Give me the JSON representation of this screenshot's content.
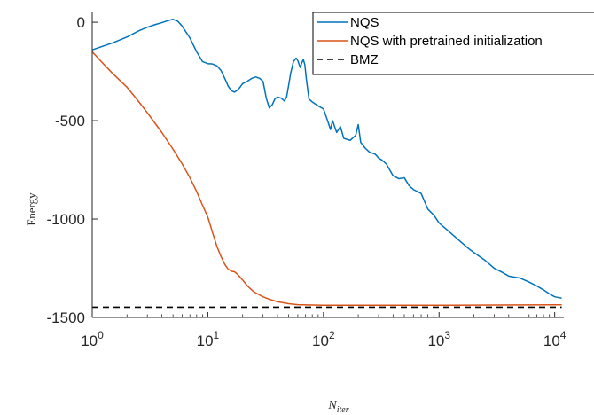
{
  "chart_data": {
    "type": "line",
    "xscale": "log",
    "xlim": [
      1,
      12000
    ],
    "ylim": [
      -1500,
      50
    ],
    "xlabel": "N",
    "xlabel_sub": "iter",
    "ylabel": "Energy",
    "grid": false,
    "legend_position": "top-right",
    "x_ticks": [
      {
        "base": "10",
        "exp": "0",
        "value": 1
      },
      {
        "base": "10",
        "exp": "1",
        "value": 10
      },
      {
        "base": "10",
        "exp": "2",
        "value": 100
      },
      {
        "base": "10",
        "exp": "3",
        "value": 1000
      },
      {
        "base": "10",
        "exp": "4",
        "value": 10000
      }
    ],
    "y_ticks": [
      {
        "label": "0",
        "value": 0
      },
      {
        "label": "-500",
        "value": -500
      },
      {
        "label": "-1000",
        "value": -1000
      },
      {
        "label": "-1500",
        "value": -1500
      }
    ],
    "series": [
      {
        "name": "NQS",
        "color": "#0072BD",
        "style": "solid",
        "points": [
          [
            1,
            -140
          ],
          [
            1.5,
            -105
          ],
          [
            2,
            -75
          ],
          [
            2.5,
            -45
          ],
          [
            3,
            -25
          ],
          [
            3.5,
            -12
          ],
          [
            4,
            -2
          ],
          [
            4.5,
            8
          ],
          [
            5,
            15
          ],
          [
            5.5,
            5
          ],
          [
            6,
            -20
          ],
          [
            7,
            -80
          ],
          [
            8,
            -150
          ],
          [
            9,
            -200
          ],
          [
            10,
            -210
          ],
          [
            11,
            -212
          ],
          [
            12,
            -222
          ],
          [
            13,
            -245
          ],
          [
            14,
            -285
          ],
          [
            15,
            -325
          ],
          [
            16,
            -348
          ],
          [
            17,
            -355
          ],
          [
            18,
            -345
          ],
          [
            19,
            -330
          ],
          [
            20,
            -312
          ],
          [
            22,
            -300
          ],
          [
            24,
            -285
          ],
          [
            26,
            -278
          ],
          [
            28,
            -285
          ],
          [
            30,
            -300
          ],
          [
            32,
            -385
          ],
          [
            34,
            -435
          ],
          [
            36,
            -420
          ],
          [
            38,
            -390
          ],
          [
            40,
            -380
          ],
          [
            43,
            -385
          ],
          [
            46,
            -400
          ],
          [
            48,
            -380
          ],
          [
            50,
            -320
          ],
          [
            52,
            -260
          ],
          [
            55,
            -200
          ],
          [
            58,
            -182
          ],
          [
            60,
            -195
          ],
          [
            63,
            -230
          ],
          [
            65,
            -205
          ],
          [
            67,
            -190
          ],
          [
            69,
            -215
          ],
          [
            71,
            -285
          ],
          [
            73,
            -340
          ],
          [
            75,
            -390
          ],
          [
            80,
            -405
          ],
          [
            90,
            -425
          ],
          [
            100,
            -440
          ],
          [
            110,
            -510
          ],
          [
            115,
            -545
          ],
          [
            120,
            -500
          ],
          [
            130,
            -560
          ],
          [
            140,
            -530
          ],
          [
            150,
            -590
          ],
          [
            170,
            -600
          ],
          [
            190,
            -575
          ],
          [
            200,
            -520
          ],
          [
            210,
            -610
          ],
          [
            230,
            -640
          ],
          [
            250,
            -660
          ],
          [
            280,
            -670
          ],
          [
            300,
            -690
          ],
          [
            320,
            -700
          ],
          [
            350,
            -720
          ],
          [
            400,
            -780
          ],
          [
            450,
            -795
          ],
          [
            500,
            -790
          ],
          [
            550,
            -830
          ],
          [
            600,
            -850
          ],
          [
            700,
            -870
          ],
          [
            800,
            -950
          ],
          [
            900,
            -980
          ],
          [
            1000,
            -1020
          ],
          [
            1200,
            -1060
          ],
          [
            1500,
            -1110
          ],
          [
            1800,
            -1150
          ],
          [
            2000,
            -1170
          ],
          [
            2500,
            -1210
          ],
          [
            3000,
            -1250
          ],
          [
            3500,
            -1270
          ],
          [
            4000,
            -1290
          ],
          [
            5000,
            -1300
          ],
          [
            6000,
            -1320
          ],
          [
            7000,
            -1340
          ],
          [
            8000,
            -1360
          ],
          [
            9000,
            -1380
          ],
          [
            10000,
            -1395
          ],
          [
            11000,
            -1400
          ],
          [
            11500,
            -1402
          ]
        ]
      },
      {
        "name": "NQS with pretrained initialization",
        "color": "#D95319",
        "style": "solid",
        "points": [
          [
            1,
            -150
          ],
          [
            1.2,
            -200
          ],
          [
            1.5,
            -260
          ],
          [
            2,
            -330
          ],
          [
            2.5,
            -400
          ],
          [
            3,
            -460
          ],
          [
            4,
            -560
          ],
          [
            5,
            -645
          ],
          [
            6,
            -720
          ],
          [
            7,
            -790
          ],
          [
            8,
            -860
          ],
          [
            9,
            -930
          ],
          [
            10,
            -990
          ],
          [
            11,
            -1070
          ],
          [
            12,
            -1140
          ],
          [
            13,
            -1190
          ],
          [
            14,
            -1230
          ],
          [
            15,
            -1255
          ],
          [
            16,
            -1265
          ],
          [
            17,
            -1268
          ],
          [
            18,
            -1280
          ],
          [
            20,
            -1310
          ],
          [
            22,
            -1340
          ],
          [
            25,
            -1370
          ],
          [
            30,
            -1395
          ],
          [
            35,
            -1410
          ],
          [
            40,
            -1420
          ],
          [
            50,
            -1430
          ],
          [
            60,
            -1435
          ],
          [
            80,
            -1437
          ],
          [
            100,
            -1438
          ],
          [
            200,
            -1438
          ],
          [
            500,
            -1438
          ],
          [
            1000,
            -1438
          ],
          [
            3000,
            -1437
          ],
          [
            10000,
            -1436
          ],
          [
            11500,
            -1436
          ]
        ]
      },
      {
        "name": "BMZ",
        "color": "#000000",
        "style": "dashed",
        "points": [
          [
            1,
            -1448
          ],
          [
            11500,
            -1448
          ]
        ]
      }
    ]
  }
}
